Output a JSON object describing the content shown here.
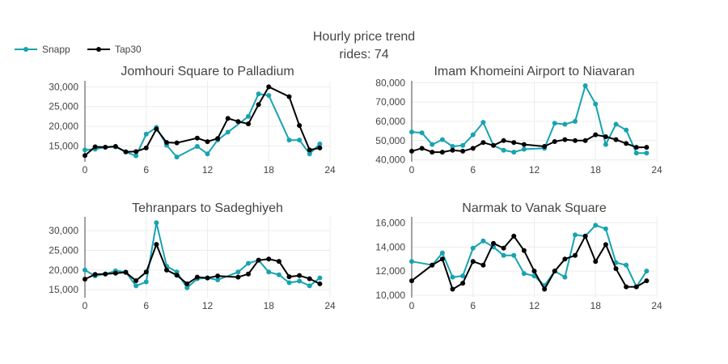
{
  "chart_data": {
    "type": "line",
    "title": "Hourly price trend",
    "subtitle": "rides: 74",
    "legend": {
      "placement": "top-left",
      "entries": [
        {
          "name": "Snapp",
          "color": "#17a3b0"
        },
        {
          "name": "Tap30",
          "color": "#000000"
        }
      ]
    },
    "grid": true,
    "panels": [
      {
        "title": "Jomhouri Square to Palladium",
        "xlim": [
          0,
          24
        ],
        "ylim": [
          11000,
          31500
        ],
        "xticks": [
          0,
          6,
          12,
          18,
          24
        ],
        "yticks": [
          15000,
          20000,
          25000,
          30000
        ],
        "ytick_labels": [
          "15,000",
          "20,000",
          "25,000",
          "30,000"
        ],
        "series": [
          {
            "name": "Snapp",
            "color": "#17a3b0",
            "x": [
              0,
              1,
              2,
              3,
              4,
              5,
              6,
              7,
              8,
              9,
              11,
              12,
              13,
              14,
              16,
              17,
              18,
              20,
              21,
              22,
              23
            ],
            "y": [
              14000,
              14200,
              14700,
              14800,
              13500,
              12500,
              18000,
              19700,
              15200,
              12200,
              14900,
              13000,
              16500,
              18500,
              22500,
              28200,
              27800,
              16500,
              16500,
              13000,
              15500
            ]
          },
          {
            "name": "Tap30",
            "color": "#000000",
            "x": [
              0,
              1,
              2,
              3,
              4,
              5,
              6,
              7,
              8,
              9,
              11,
              12,
              13,
              14,
              15,
              16,
              17,
              18,
              20,
              21,
              22,
              23
            ],
            "y": [
              12600,
              14800,
              14700,
              14900,
              13500,
              13600,
              14500,
              19300,
              15900,
              15800,
              17000,
              16100,
              16900,
              22000,
              21200,
              20600,
              25500,
              30000,
              27500,
              20200,
              14000,
              14500
            ]
          }
        ]
      },
      {
        "title": "Imam Khomeini Airport to Niavaran",
        "xlim": [
          0,
          24
        ],
        "ylim": [
          39000,
          81000
        ],
        "xticks": [
          0,
          6,
          12,
          18,
          24
        ],
        "yticks": [
          40000,
          50000,
          60000,
          70000,
          80000
        ],
        "ytick_labels": [
          "40,000",
          "50,000",
          "60,000",
          "70,000",
          "80,000"
        ],
        "series": [
          {
            "name": "Snapp",
            "color": "#17a3b0",
            "x": [
              0,
              1,
              2,
              3,
              4,
              5,
              6,
              7,
              8,
              9,
              10,
              11,
              13,
              14,
              15,
              16,
              17,
              18,
              19,
              20,
              21,
              22,
              23
            ],
            "y": [
              54500,
              54000,
              48000,
              50500,
              47000,
              47500,
              53000,
              59500,
              47500,
              45000,
              44000,
              45500,
              46000,
              59000,
              58500,
              60000,
              78500,
              69000,
              48000,
              58500,
              55500,
              43500,
              43500
            ]
          },
          {
            "name": "Tap30",
            "color": "#000000",
            "x": [
              0,
              1,
              2,
              3,
              4,
              5,
              6,
              7,
              8,
              9,
              10,
              11,
              13,
              14,
              15,
              16,
              17,
              18,
              19,
              20,
              21,
              22,
              23
            ],
            "y": [
              44500,
              46000,
              44000,
              44000,
              45000,
              44500,
              46000,
              49000,
              47500,
              50000,
              49000,
              48000,
              47000,
              49500,
              50500,
              50000,
              50000,
              53000,
              52000,
              50500,
              48500,
              46500,
              46500
            ]
          }
        ]
      },
      {
        "title": "Tehranpars to Sadeghiyeh",
        "xlim": [
          0,
          24
        ],
        "ylim": [
          13000,
          33500
        ],
        "xticks": [
          0,
          6,
          12,
          18,
          24
        ],
        "yticks": [
          15000,
          20000,
          25000,
          30000
        ],
        "ytick_labels": [
          "15,000",
          "20,000",
          "25,000",
          "30,000"
        ],
        "series": [
          {
            "name": "Snapp",
            "color": "#17a3b0",
            "x": [
              0,
              1,
              2,
              3,
              4,
              5,
              6,
              7,
              8,
              9,
              10,
              11,
              12,
              13,
              15,
              16,
              17,
              18,
              19,
              20,
              21,
              22,
              23
            ],
            "y": [
              20000,
              18500,
              19000,
              19800,
              19500,
              16000,
              17000,
              32000,
              21000,
              19500,
              15500,
              17800,
              18000,
              17500,
              19500,
              21700,
              22500,
              19500,
              18800,
              16800,
              17200,
              16000,
              18000
            ]
          },
          {
            "name": "Tap30",
            "color": "#000000",
            "x": [
              0,
              1,
              2,
              3,
              4,
              5,
              6,
              7,
              8,
              9,
              10,
              11,
              12,
              13,
              15,
              16,
              17,
              18,
              19,
              20,
              21,
              22,
              23
            ],
            "y": [
              17700,
              18900,
              19000,
              19200,
              19400,
              17300,
              19500,
              26500,
              20000,
              18700,
              16500,
              18200,
              18000,
              18500,
              18200,
              19000,
              22500,
              22800,
              22200,
              18300,
              18600,
              17800,
              16500
            ]
          }
        ]
      },
      {
        "title": "Narmak to Vanak Square",
        "xlim": [
          0,
          24
        ],
        "ylim": [
          9800,
          16500
        ],
        "xticks": [
          0,
          6,
          12,
          18,
          24
        ],
        "yticks": [
          10000,
          12000,
          14000,
          16000
        ],
        "ytick_labels": [
          "10,000",
          "12,000",
          "14,000",
          "16,000"
        ],
        "series": [
          {
            "name": "Snapp",
            "color": "#17a3b0",
            "x": [
              0,
              2,
              3,
              4,
              5,
              6,
              7,
              8,
              9,
              10,
              11,
              12,
              13,
              14,
              15,
              16,
              17,
              18,
              19,
              20,
              21,
              22,
              23
            ],
            "y": [
              12800,
              12500,
              13500,
              11500,
              11600,
              13900,
              14500,
              14000,
              13300,
              13300,
              11800,
              11600,
              10800,
              12000,
              11500,
              15000,
              14900,
              15800,
              15500,
              12700,
              12500,
              10700,
              12000
            ]
          },
          {
            "name": "Tap30",
            "color": "#000000",
            "x": [
              0,
              2,
              3,
              4,
              5,
              6,
              7,
              8,
              9,
              10,
              11,
              12,
              13,
              14,
              15,
              16,
              17,
              18,
              19,
              20,
              21,
              22,
              23
            ],
            "y": [
              11200,
              12500,
              13000,
              10500,
              11000,
              12800,
              12500,
              14300,
              13900,
              14900,
              13700,
              12000,
              10500,
              12000,
              13000,
              13300,
              14900,
              12800,
              14200,
              12200,
              10700,
              10700,
              11200
            ]
          }
        ]
      }
    ]
  }
}
